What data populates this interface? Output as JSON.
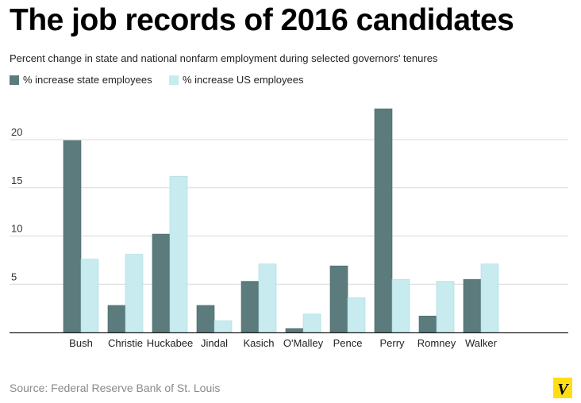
{
  "chart_data": {
    "type": "bar",
    "title": "The job records of 2016 candidates",
    "subtitle": "Percent change in state and national nonfarm employment during selected governors' tenures",
    "xlabel": "",
    "ylabel": "",
    "categories": [
      "Bush",
      "Christie",
      "Huckabee",
      "Jindal",
      "Kasich",
      "O'Malley",
      "Pence",
      "Perry",
      "Romney",
      "Walker"
    ],
    "series": [
      {
        "name": "% increase state employees",
        "color": "#5b7b7c",
        "values": [
          19.9,
          2.8,
          10.2,
          2.8,
          5.3,
          0.4,
          6.9,
          23.2,
          1.7,
          5.5
        ]
      },
      {
        "name": "% increase US employees",
        "color": "#c7ebef",
        "values": [
          7.6,
          8.1,
          16.2,
          1.2,
          7.1,
          1.9,
          3.6,
          5.5,
          5.3,
          7.1
        ]
      }
    ],
    "yticks": [
      5,
      10,
      15,
      20
    ],
    "ylim": [
      0,
      25
    ],
    "grid": true,
    "legend_position": "top-left",
    "source": "Source: Federal Reserve Bank of St. Louis"
  },
  "logo": {
    "letter": "V",
    "color": "#ffde14"
  }
}
